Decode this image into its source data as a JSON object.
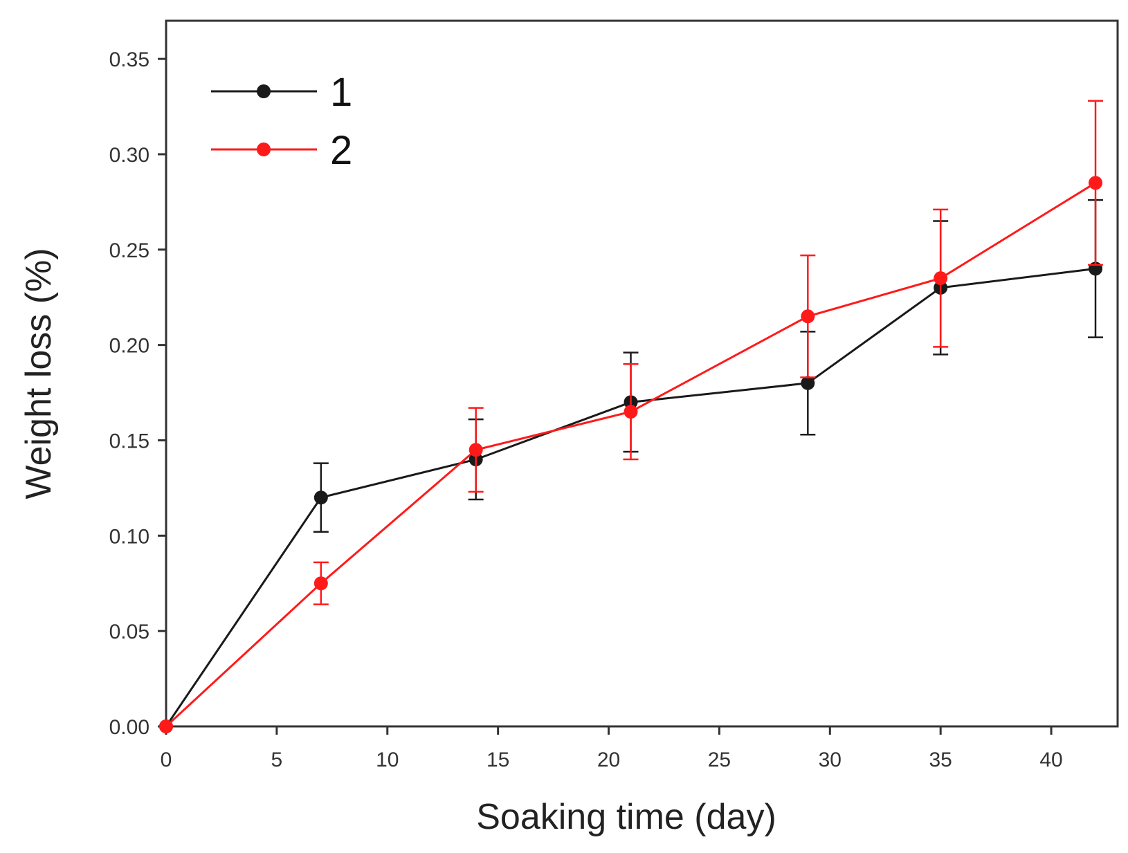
{
  "chart_data": {
    "type": "line",
    "title": "",
    "xlabel": "Soaking time (day)",
    "ylabel": "Weight loss (%)",
    "xlim": [
      0,
      43
    ],
    "ylim": [
      0,
      0.37
    ],
    "xticks": [
      0,
      5,
      10,
      15,
      20,
      25,
      30,
      35,
      40
    ],
    "xtick_labels": [
      "0",
      "5",
      "10",
      "15",
      "20",
      "25",
      "30",
      "35",
      "40"
    ],
    "yticks": [
      0,
      0.05,
      0.1,
      0.15,
      0.2,
      0.25,
      0.3,
      0.35
    ],
    "ytick_labels": [
      "0.00",
      "0.05",
      "0.10",
      "0.15",
      "0.20",
      "0.25",
      "0.30",
      "0.35"
    ],
    "grid": false,
    "legend_position": "top-left",
    "series": [
      {
        "name": "1",
        "color": "#1a1a1a",
        "x": [
          0,
          7,
          14,
          21,
          29,
          35,
          42
        ],
        "y": [
          0,
          0.12,
          0.14,
          0.17,
          0.18,
          0.23,
          0.24
        ],
        "err": [
          0,
          0.018,
          0.021,
          0.026,
          0.027,
          0.035,
          0.036
        ]
      },
      {
        "name": "2",
        "color": "#ff1a1a",
        "x": [
          0,
          7,
          14,
          21,
          29,
          35,
          42
        ],
        "y": [
          0,
          0.075,
          0.145,
          0.165,
          0.215,
          0.235,
          0.285
        ],
        "err": [
          0,
          0.011,
          0.022,
          0.025,
          0.032,
          0.036,
          0.043
        ]
      }
    ]
  }
}
